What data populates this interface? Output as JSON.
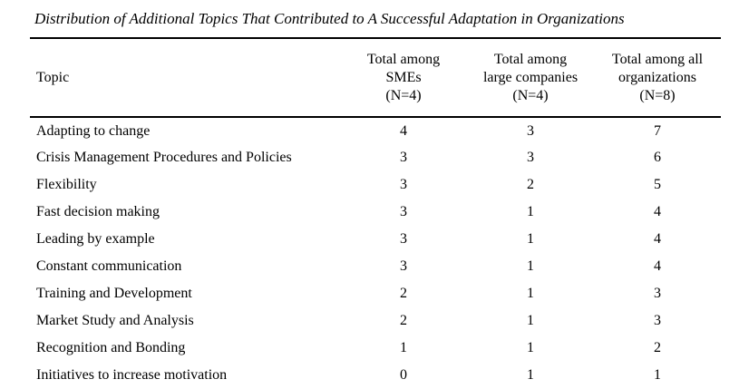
{
  "document": {
    "title": "Distribution of Additional Topics That Contributed to A Successful Adaptation in Organizations"
  },
  "colors": {
    "text": "#000000",
    "background": "#ffffff",
    "rule": "#000000"
  },
  "table": {
    "columns": [
      {
        "lines": [
          "Topic"
        ]
      },
      {
        "lines": [
          "Total among",
          "SMEs",
          "(N=4)"
        ]
      },
      {
        "lines": [
          "Total among",
          "large companies",
          "(N=4)"
        ]
      },
      {
        "lines": [
          "Total among all",
          "organizations",
          "(N=8)"
        ]
      }
    ],
    "rows": [
      {
        "topic": "Adapting to change",
        "smes": "4",
        "large": "3",
        "all": "7"
      },
      {
        "topic": "Crisis Management Procedures and Policies",
        "smes": "3",
        "large": "3",
        "all": "6"
      },
      {
        "topic": "Flexibility",
        "smes": "3",
        "large": "2",
        "all": "5"
      },
      {
        "topic": "Fast decision making",
        "smes": "3",
        "large": "1",
        "all": "4"
      },
      {
        "topic": "Leading by example",
        "smes": "3",
        "large": "1",
        "all": "4"
      },
      {
        "topic": "Constant communication",
        "smes": "3",
        "large": "1",
        "all": "4"
      },
      {
        "topic": "Training and Development",
        "smes": "2",
        "large": "1",
        "all": "3"
      },
      {
        "topic": "Market Study and Analysis",
        "smes": "2",
        "large": "1",
        "all": "3"
      },
      {
        "topic": "Recognition and Bonding",
        "smes": "1",
        "large": "1",
        "all": "2"
      },
      {
        "topic": "Initiatives to increase motivation",
        "smes": "0",
        "large": "1",
        "all": "1"
      }
    ]
  }
}
